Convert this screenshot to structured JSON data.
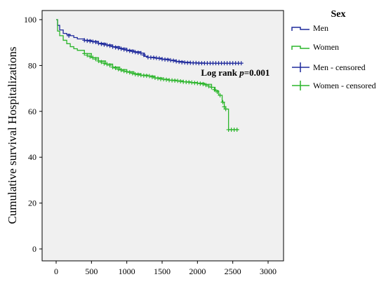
{
  "chart_data": {
    "type": "line",
    "subtype": "kaplan-meier",
    "title": "",
    "xlabel": "",
    "ylabel": "Cumulative survival Hospitalizations",
    "xlim": [
      0,
      3000
    ],
    "ylim": [
      0,
      100
    ],
    "x_ticks": [
      0,
      500,
      1000,
      1500,
      2000,
      2500,
      3000
    ],
    "y_ticks": [
      0,
      20,
      40,
      60,
      80,
      100
    ],
    "grid": false,
    "legend_title": "Sex",
    "legend_position": "outside-right",
    "annotation": {
      "text_prefix": "Log rank ",
      "text_italic": "p",
      "text_suffix": "=0.001",
      "x": 2050,
      "y": 75.5
    },
    "series": [
      {
        "name": "Men",
        "color": "#1f2a9c",
        "x": [
          0,
          20,
          50,
          100,
          150,
          200,
          250,
          300,
          400,
          500,
          600,
          700,
          800,
          900,
          1000,
          1100,
          1200,
          1250,
          1300,
          1400,
          1500,
          1600,
          1700,
          1800,
          1900,
          2000,
          2100,
          2200,
          2300,
          2400,
          2500,
          2600
        ],
        "y": [
          100,
          97.5,
          95.5,
          94.0,
          93.5,
          93.0,
          92.2,
          91.6,
          91.0,
          90.5,
          89.7,
          89.0,
          88.2,
          87.5,
          86.7,
          86.0,
          85.4,
          84.0,
          83.6,
          83.2,
          82.8,
          82.3,
          81.8,
          81.4,
          81.2,
          81.1,
          81.0,
          81.0,
          81.0,
          81.0,
          81.0,
          81.0
        ]
      },
      {
        "name": "Women",
        "color": "#2bb52b",
        "x": [
          0,
          20,
          50,
          100,
          150,
          200,
          250,
          300,
          400,
          500,
          600,
          700,
          800,
          900,
          1000,
          1100,
          1200,
          1300,
          1400,
          1500,
          1600,
          1700,
          1800,
          1900,
          2000,
          2100,
          2200,
          2250,
          2300,
          2350,
          2380,
          2400,
          2420,
          2440,
          2500,
          2580
        ],
        "y": [
          100,
          95.0,
          93.0,
          91.0,
          89.5,
          88.2,
          87.3,
          86.6,
          85.2,
          83.4,
          82.0,
          80.6,
          79.3,
          78.2,
          77.3,
          76.4,
          75.8,
          75.4,
          74.6,
          74.0,
          73.6,
          73.3,
          72.9,
          72.6,
          72.3,
          71.8,
          70.5,
          69.0,
          67.0,
          64.0,
          62.0,
          61.0,
          61.0,
          52.0,
          52.0,
          52.0
        ]
      },
      {
        "name": "Men - censored",
        "color": "#1f2a9c",
        "marker": "+",
        "x": [
          180,
          400,
          440,
          480,
          520,
          560,
          600,
          640,
          680,
          720,
          760,
          800,
          840,
          880,
          920,
          960,
          1000,
          1040,
          1080,
          1120,
          1160,
          1200,
          1240,
          1300,
          1340,
          1380,
          1420,
          1460,
          1500,
          1540,
          1580,
          1620,
          1660,
          1700,
          1740,
          1780,
          1820,
          1860,
          1900,
          1940,
          1980,
          2020,
          2060,
          2100,
          2140,
          2180,
          2220,
          2260,
          2300,
          2340,
          2380,
          2420,
          2460,
          2500,
          2540,
          2580,
          2620
        ],
        "y": [
          93.0,
          91.0,
          90.8,
          90.6,
          90.4,
          90.2,
          89.7,
          89.4,
          89.1,
          88.9,
          88.6,
          88.2,
          87.9,
          87.6,
          87.3,
          87.0,
          86.7,
          86.4,
          86.1,
          85.8,
          85.6,
          85.4,
          84.6,
          83.6,
          83.5,
          83.4,
          83.3,
          83.1,
          82.8,
          82.6,
          82.5,
          82.3,
          82.1,
          81.8,
          81.6,
          81.4,
          81.3,
          81.2,
          81.2,
          81.1,
          81.1,
          81.0,
          81.0,
          81.0,
          81.0,
          81.0,
          81.0,
          81.0,
          81.0,
          81.0,
          81.0,
          81.0,
          81.0,
          81.0,
          81.0,
          81.0,
          81.0
        ]
      },
      {
        "name": "Women - censored",
        "color": "#2bb52b",
        "marker": "+",
        "x": [
          400,
          440,
          480,
          520,
          560,
          600,
          640,
          680,
          720,
          760,
          800,
          840,
          880,
          920,
          960,
          1000,
          1040,
          1080,
          1120,
          1160,
          1200,
          1240,
          1280,
          1320,
          1360,
          1400,
          1440,
          1480,
          1520,
          1560,
          1600,
          1640,
          1680,
          1720,
          1760,
          1800,
          1840,
          1880,
          1920,
          1960,
          2000,
          2040,
          2080,
          2120,
          2160,
          2200,
          2240,
          2280,
          2320,
          2360,
          2380,
          2400,
          2440,
          2480,
          2520,
          2560
        ],
        "y": [
          85.2,
          84.5,
          83.9,
          83.4,
          82.8,
          82.0,
          81.5,
          80.9,
          80.6,
          80.1,
          79.3,
          78.9,
          78.4,
          78.0,
          77.6,
          77.3,
          77.0,
          76.6,
          76.2,
          76.0,
          75.8,
          75.6,
          75.5,
          75.4,
          75.0,
          74.6,
          74.4,
          74.1,
          74.0,
          73.8,
          73.6,
          73.5,
          73.4,
          73.3,
          73.1,
          72.9,
          72.8,
          72.7,
          72.6,
          72.4,
          72.3,
          72.1,
          71.9,
          71.5,
          71.0,
          70.5,
          69.5,
          68.5,
          67.0,
          64.0,
          62.0,
          61.0,
          52.0,
          52.0,
          52.0,
          52.0
        ]
      }
    ]
  }
}
